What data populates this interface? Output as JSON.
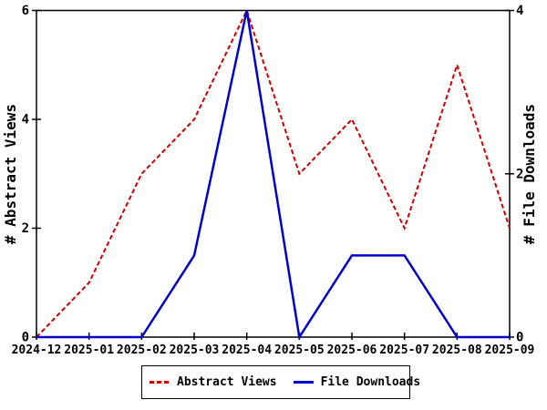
{
  "chart_data": {
    "type": "line",
    "title": "",
    "x": [
      "2024-12",
      "2025-01",
      "2025-02",
      "2025-03",
      "2025-04",
      "2025-05",
      "2025-06",
      "2025-07",
      "2025-08",
      "2025-09"
    ],
    "series": [
      {
        "name": "Abstract Views",
        "axis": "left",
        "color": "#cc0000",
        "style": "dashed",
        "dash": "5,3",
        "width": 2,
        "values": [
          0,
          1,
          3,
          4,
          6,
          3,
          4,
          2,
          5,
          2
        ]
      },
      {
        "name": "File Downloads",
        "axis": "right",
        "color": "#0000cc",
        "style": "solid",
        "dash": "",
        "width": 2.5,
        "values": [
          0,
          0,
          0,
          1,
          4,
          0,
          1,
          1,
          0,
          0
        ]
      }
    ],
    "y_left": {
      "label": "# Abstract Views",
      "range": [
        0,
        6
      ],
      "ticks": [
        0,
        2,
        4,
        6
      ]
    },
    "y_right": {
      "label": "# File Downloads",
      "range": [
        0,
        4
      ],
      "ticks": [
        0,
        2,
        4
      ]
    },
    "grid": false,
    "legend_position": "bottom-center",
    "background_color": "#ffffff",
    "axis_color": "#000000"
  }
}
